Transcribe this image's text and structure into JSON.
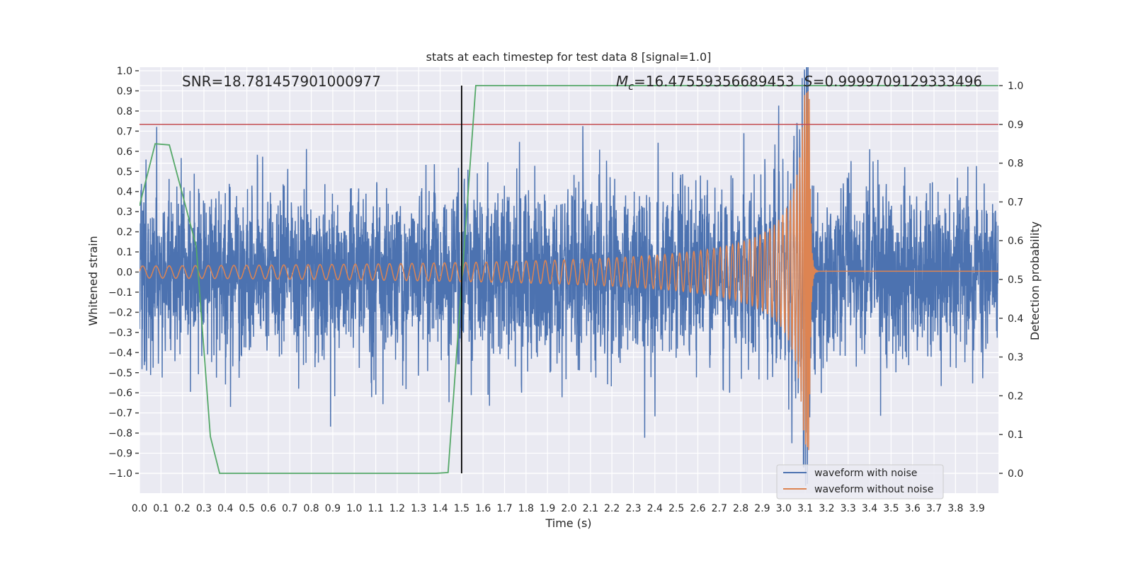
{
  "chart_data": {
    "type": "line",
    "title": "stats at each timestep for test data 8 [signal=1.0]",
    "xlabel": "Time (s)",
    "ylabel": "Whitened strain",
    "ylabel_right": "Detection probability",
    "xlim": [
      0,
      4.0
    ],
    "ylim": [
      -1.1,
      1.02
    ],
    "ylim_right": [
      -0.05,
      1.05
    ],
    "grid": true,
    "x_ticks": [
      "0.0",
      "0.1",
      "0.2",
      "0.3",
      "0.4",
      "0.5",
      "0.6",
      "0.7",
      "0.8",
      "0.9",
      "1.0",
      "1.1",
      "1.2",
      "1.3",
      "1.4",
      "1.5",
      "1.6",
      "1.7",
      "1.8",
      "1.9",
      "2.0",
      "2.1",
      "2.2",
      "2.3",
      "2.4",
      "2.5",
      "2.6",
      "2.7",
      "2.8",
      "2.9",
      "3.0",
      "3.1",
      "3.2",
      "3.3",
      "3.4",
      "3.5",
      "3.6",
      "3.7",
      "3.8",
      "3.9"
    ],
    "y_ticks": [
      "1.0",
      "0.9",
      "0.8",
      "0.7",
      "0.6",
      "0.5",
      "0.4",
      "0.3",
      "0.2",
      "0.1",
      "0.0",
      "−0.1",
      "−0.2",
      "−0.3",
      "−0.4",
      "−0.5",
      "−0.6",
      "−0.7",
      "−0.8",
      "−0.9",
      "−1.0"
    ],
    "y_ticks_right": [
      "1.0",
      "0.9",
      "0.8",
      "0.7",
      "0.6",
      "0.5",
      "0.4",
      "0.3",
      "0.2",
      "0.1",
      "0.0"
    ],
    "annotations": {
      "snr": "SNR=18.781457901000977",
      "mc_symbol": "M",
      "mc_sub": "c",
      "mc_value": "=16.47559356689453",
      "s_symbol": "S",
      "s_value": "=0.9999709129333496"
    },
    "legend": {
      "placement": "lower-right",
      "entries": [
        "waveform with noise",
        "waveform without noise"
      ]
    },
    "series": [
      {
        "name": "waveform with noise",
        "axis": "left",
        "color": "#4c72b0",
        "kind": "noise+chirp",
        "noise_sigma": 0.21,
        "seed": 8
      },
      {
        "name": "waveform without noise",
        "axis": "left",
        "color": "#dd8452",
        "kind": "chirp",
        "f0_hz": 16,
        "a0": 0.03,
        "t_merger": 3.12,
        "peak_amplitude": 0.9
      },
      {
        "name": "detection probability",
        "axis": "right",
        "color": "#55a868",
        "x": [
          0.0,
          0.073,
          0.139,
          0.264,
          0.33,
          0.373,
          1.38,
          1.437,
          1.566,
          4.0
        ],
        "y": [
          0.69,
          0.85,
          0.847,
          0.586,
          0.095,
          0.0,
          0.0,
          0.002,
          1.0,
          1.0
        ]
      }
    ],
    "threshold_line": {
      "axis": "right",
      "value": 0.9,
      "color": "#c44e52"
    },
    "marker_line": {
      "x": 1.5,
      "from": 0.0,
      "to": 1.0,
      "color": "#000000"
    }
  }
}
